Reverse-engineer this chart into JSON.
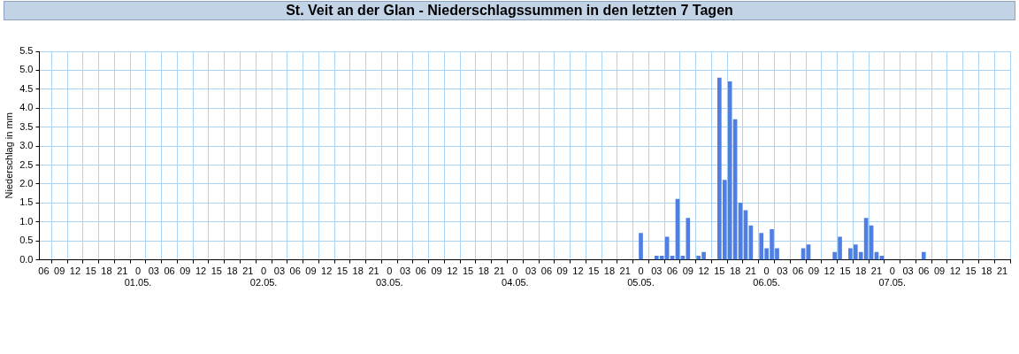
{
  "chart_data": {
    "type": "bar",
    "title": "St. Veit an der Glan - Niederschlagssummen in den letzten 7 Tagen",
    "ylabel": "Niederschlag in mm",
    "x": [
      "--05-05T00:00",
      "--05-05T03:00",
      "--05-05T04:00",
      "--05-05T05:00",
      "--05-05T06:00",
      "--05-05T07:00",
      "--05-05T08:00",
      "--05-05T09:00",
      "--05-05T11:00",
      "--05-05T12:00",
      "--05-05T15:00",
      "--05-05T16:00",
      "--05-05T17:00",
      "--05-05T18:00",
      "--05-05T19:00",
      "--05-05T20:00",
      "--05-05T21:00",
      "--05-05T23:00",
      "--05-06T00:00",
      "--05-06T01:00",
      "--05-06T02:00",
      "--05-06T07:00",
      "--05-06T08:00",
      "--05-06T13:00",
      "--05-06T14:00",
      "--05-06T16:00",
      "--05-06T17:00",
      "--05-06T18:00",
      "--05-06T19:00",
      "--05-06T20:00",
      "--05-06T21:00",
      "--05-06T22:00",
      "--05-07T06:00"
    ],
    "values": [
      0.7,
      0.1,
      0.1,
      0.6,
      0.1,
      1.6,
      0.1,
      1.1,
      0.1,
      0.2,
      4.8,
      2.1,
      4.7,
      3.7,
      1.5,
      1.3,
      0.9,
      0.7,
      0.3,
      0.8,
      0.3,
      0.3,
      0.4,
      0.2,
      0.6,
      0.3,
      0.4,
      0.2,
      1.1,
      0.9,
      0.2,
      0.1,
      0.2
    ],
    "color": "#4f7fe3",
    "xlim": [
      "--04-30T05:10",
      "--05-07T22:30"
    ],
    "xticks": [
      {
        "value": "--04-30T06:00",
        "label": "06"
      },
      {
        "value": "--04-30T09:00",
        "label": "09"
      },
      {
        "value": "--04-30T12:00",
        "label": "12"
      },
      {
        "value": "--04-30T15:00",
        "label": "15"
      },
      {
        "value": "--04-30T18:00",
        "label": "18"
      },
      {
        "value": "--04-30T21:00",
        "label": "21"
      },
      {
        "value": "--05-01T00:00",
        "label": "0\n01.05."
      },
      {
        "value": "--05-01T03:00",
        "label": "03"
      },
      {
        "value": "--05-01T06:00",
        "label": "06"
      },
      {
        "value": "--05-01T09:00",
        "label": "09"
      },
      {
        "value": "--05-01T12:00",
        "label": "12"
      },
      {
        "value": "--05-01T15:00",
        "label": "15"
      },
      {
        "value": "--05-01T18:00",
        "label": "18"
      },
      {
        "value": "--05-01T21:00",
        "label": "21"
      },
      {
        "value": "--05-02T00:00",
        "label": "0\n02.05."
      },
      {
        "value": "--05-02T03:00",
        "label": "03"
      },
      {
        "value": "--05-02T06:00",
        "label": "06"
      },
      {
        "value": "--05-02T09:00",
        "label": "09"
      },
      {
        "value": "--05-02T12:00",
        "label": "12"
      },
      {
        "value": "--05-02T15:00",
        "label": "15"
      },
      {
        "value": "--05-02T18:00",
        "label": "18"
      },
      {
        "value": "--05-02T21:00",
        "label": "21"
      },
      {
        "value": "--05-03T00:00",
        "label": "0\n03.05."
      },
      {
        "value": "--05-03T03:00",
        "label": "03"
      },
      {
        "value": "--05-03T06:00",
        "label": "06"
      },
      {
        "value": "--05-03T09:00",
        "label": "09"
      },
      {
        "value": "--05-03T12:00",
        "label": "12"
      },
      {
        "value": "--05-03T15:00",
        "label": "15"
      },
      {
        "value": "--05-03T18:00",
        "label": "18"
      },
      {
        "value": "--05-03T21:00",
        "label": "21"
      },
      {
        "value": "--05-04T00:00",
        "label": "0\n04.05."
      },
      {
        "value": "--05-04T03:00",
        "label": "03"
      },
      {
        "value": "--05-04T06:00",
        "label": "06"
      },
      {
        "value": "--05-04T09:00",
        "label": "09"
      },
      {
        "value": "--05-04T12:00",
        "label": "12"
      },
      {
        "value": "--05-04T15:00",
        "label": "15"
      },
      {
        "value": "--05-04T18:00",
        "label": "18"
      },
      {
        "value": "--05-04T21:00",
        "label": "21"
      },
      {
        "value": "--05-05T00:00",
        "label": "0\n05.05."
      },
      {
        "value": "--05-05T03:00",
        "label": "03"
      },
      {
        "value": "--05-05T06:00",
        "label": "06"
      },
      {
        "value": "--05-05T09:00",
        "label": "09"
      },
      {
        "value": "--05-05T12:00",
        "label": "12"
      },
      {
        "value": "--05-05T15:00",
        "label": "15"
      },
      {
        "value": "--05-05T18:00",
        "label": "18"
      },
      {
        "value": "--05-05T21:00",
        "label": "21"
      },
      {
        "value": "--05-06T00:00",
        "label": "0\n06.05."
      },
      {
        "value": "--05-06T03:00",
        "label": "03"
      },
      {
        "value": "--05-06T06:00",
        "label": "06"
      },
      {
        "value": "--05-06T09:00",
        "label": "09"
      },
      {
        "value": "--05-06T12:00",
        "label": "12"
      },
      {
        "value": "--05-06T15:00",
        "label": "15"
      },
      {
        "value": "--05-06T18:00",
        "label": "18"
      },
      {
        "value": "--05-06T21:00",
        "label": "21"
      },
      {
        "value": "--05-07T00:00",
        "label": "0\n07.05."
      },
      {
        "value": "--05-07T03:00",
        "label": "03"
      },
      {
        "value": "--05-07T06:00",
        "label": "06"
      },
      {
        "value": "--05-07T09:00",
        "label": "09"
      },
      {
        "value": "--05-07T12:00",
        "label": "12"
      },
      {
        "value": "--05-07T15:00",
        "label": "15"
      },
      {
        "value": "--05-07T18:00",
        "label": "18"
      },
      {
        "value": "--05-07T21:00",
        "label": "21"
      }
    ],
    "ylim": [
      0,
      5.5
    ],
    "yticks": [
      {
        "value": 0,
        "label": "0.0"
      },
      {
        "value": 0.5,
        "label": "0.5"
      },
      {
        "value": 1,
        "label": "1.0"
      },
      {
        "value": 1.5,
        "label": "1.5"
      },
      {
        "value": 2,
        "label": "2.0"
      },
      {
        "value": 2.5,
        "label": "2.5"
      },
      {
        "value": 3,
        "label": "3.0"
      },
      {
        "value": 3.5,
        "label": "3.5"
      },
      {
        "value": 4,
        "label": "4.0"
      },
      {
        "value": 4.5,
        "label": "4.5"
      },
      {
        "value": 5,
        "label": "5.0"
      },
      {
        "value": 5.5,
        "label": "5.5"
      }
    ],
    "grid": true
  }
}
